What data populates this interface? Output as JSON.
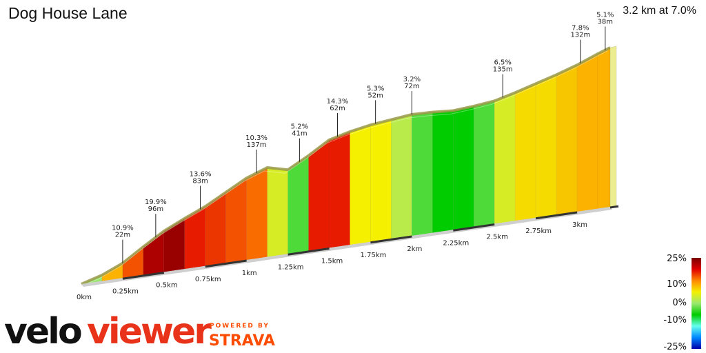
{
  "header": {
    "title": "Dog House Lane",
    "summary": "3.2 km at 7.0%"
  },
  "chart_data": {
    "type": "area",
    "xunit": "km",
    "x": [
      0,
      0.125,
      0.25,
      0.375,
      0.5,
      0.625,
      0.75,
      0.875,
      1.0,
      1.125,
      1.25,
      1.375,
      1.5,
      1.625,
      1.75,
      1.875,
      2.0,
      2.125,
      2.25,
      2.375,
      2.5,
      2.625,
      2.75,
      2.875,
      3.0,
      3.125,
      3.2
    ],
    "elevation": [
      0,
      8,
      20,
      38,
      55,
      68,
      80,
      95,
      110,
      120,
      113,
      128,
      145,
      152,
      157,
      160,
      163,
      162,
      160,
      162,
      165,
      172,
      180,
      188,
      197,
      208,
      214
    ],
    "gradients": [
      2,
      8,
      12,
      20,
      22,
      14,
      13,
      12,
      11,
      4,
      1,
      14,
      14,
      5,
      5,
      3,
      1,
      0,
      0,
      1,
      4,
      6,
      6,
      7,
      8,
      8,
      5
    ],
    "xticks": [
      "0km",
      "0.25km",
      "0.5km",
      "0.75km",
      "1km",
      "1.25km",
      "1.5km",
      "1.75km",
      "2km",
      "2.25km",
      "2.5km",
      "2.75km",
      "3km"
    ],
    "xtick_values": [
      0,
      0.25,
      0.5,
      0.75,
      1.0,
      1.25,
      1.5,
      1.75,
      2.0,
      2.25,
      2.5,
      2.75,
      3.0
    ],
    "annotations": [
      {
        "x": 0.25,
        "grade": "10.9%",
        "length": "22m"
      },
      {
        "x": 0.45,
        "grade": "19.9%",
        "length": "96m"
      },
      {
        "x": 0.72,
        "grade": "13.6%",
        "length": "83m"
      },
      {
        "x": 1.06,
        "grade": "10.3%",
        "length": "137m"
      },
      {
        "x": 1.32,
        "grade": "5.2%",
        "length": "41m"
      },
      {
        "x": 1.55,
        "grade": "14.3%",
        "length": "62m"
      },
      {
        "x": 1.78,
        "grade": "5.3%",
        "length": "52m"
      },
      {
        "x": 2.0,
        "grade": "3.2%",
        "length": "72m"
      },
      {
        "x": 2.55,
        "grade": "6.5%",
        "length": "135m"
      },
      {
        "x": 3.02,
        "grade": "7.8%",
        "length": "132m"
      },
      {
        "x": 3.17,
        "grade": "5.1%",
        "length": "38m"
      }
    ]
  },
  "legend": {
    "labels": [
      "25%",
      "10%",
      "0%",
      "-10%",
      "-25%"
    ],
    "colors": [
      "#7a0000",
      "#e00000",
      "#ff8800",
      "#f4f000",
      "#9be870",
      "#00cc00",
      "#66ffee",
      "#0088ff",
      "#0000aa"
    ]
  },
  "branding": {
    "logo_left": "velo",
    "logo_right": "viewer",
    "powered_by": "POWERED BY",
    "strava": "STRAVA"
  }
}
